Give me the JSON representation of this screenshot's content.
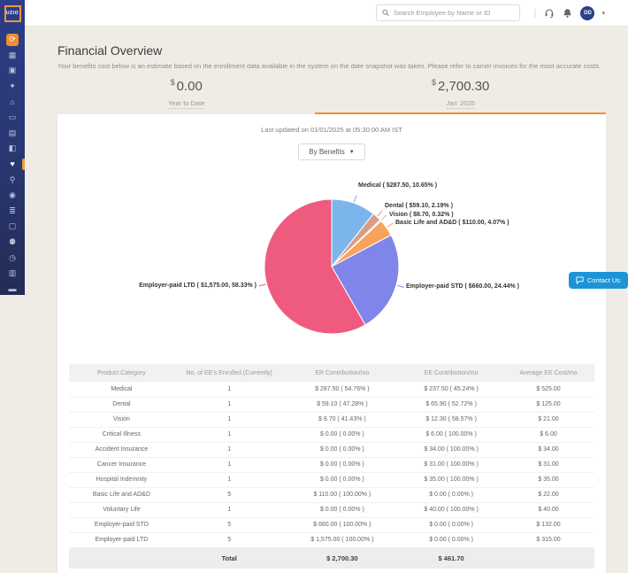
{
  "app": {
    "logo": "UZIO"
  },
  "topbar": {
    "search_placeholder": "Search Employee by Name or ID",
    "divider": "|",
    "avatar_initials": "DD"
  },
  "sidebar": {
    "items": [
      {
        "name": "home-sync",
        "glyph": "⟳",
        "style": "orange"
      },
      {
        "name": "dashboard",
        "glyph": "▦"
      },
      {
        "name": "employees",
        "glyph": "▣"
      },
      {
        "name": "ai-sparkle",
        "glyph": "✦"
      },
      {
        "name": "company",
        "glyph": "⌂"
      },
      {
        "name": "id-card",
        "glyph": "▭"
      },
      {
        "name": "documents",
        "glyph": "▤"
      },
      {
        "name": "payroll-case",
        "glyph": "◧"
      },
      {
        "name": "benefits",
        "glyph": "♥",
        "style": "active"
      },
      {
        "name": "people-search",
        "glyph": "⚲"
      },
      {
        "name": "user-shield",
        "glyph": "◉"
      },
      {
        "name": "tasks",
        "glyph": "≣"
      },
      {
        "name": "reports",
        "glyph": "▢"
      },
      {
        "name": "workstation",
        "glyph": "⚉"
      },
      {
        "name": "time-clock",
        "glyph": "◷"
      },
      {
        "name": "analytics",
        "glyph": "▥"
      },
      {
        "name": "travel-case",
        "glyph": "▬"
      }
    ]
  },
  "header": {
    "title": "Financial Overview",
    "subtitle": "Your benefits cost below is an estimate based on the enrollment data available in the system on the date snapshot was taken. Please refer to carrier invoices for the most accurate costs.",
    "tabs": [
      {
        "currency": "$",
        "amount": "0.00",
        "label": "Year to Date",
        "active": false
      },
      {
        "currency": "$",
        "amount": "2,700.30",
        "label": "Jan' 2025",
        "active": true
      }
    ]
  },
  "panel": {
    "last_updated": "Last updated on 01/01/2025 at 05:30:00 AM IST",
    "filter_label": "By Benefits",
    "contact_us": "Contact Us"
  },
  "chart_data": {
    "type": "pie",
    "title": "Benefits cost by product (Jan' 2025)",
    "total": "$ 2,700.30",
    "legend_position": "outside-callouts",
    "slices": [
      {
        "label": "Medical",
        "value": 287.5,
        "pct": 10.65,
        "color": "#7cb5ec",
        "display": "Medical ( $287.50, 10.65% )"
      },
      {
        "label": "Dental",
        "value": 59.1,
        "pct": 2.19,
        "color": "#da9c87",
        "display": "Dental ( $59.10, 2.19% )"
      },
      {
        "label": "Vision",
        "value": 8.7,
        "pct": 0.32,
        "color": "#a3d69c",
        "display": "Vision ( $8.70, 0.32% )"
      },
      {
        "label": "Basic Life and AD&D",
        "value": 110.0,
        "pct": 4.07,
        "color": "#f7a35c",
        "display": "Basic Life and AD&D ( $110.00, 4.07% )"
      },
      {
        "label": "Employer-paid STD",
        "value": 660.0,
        "pct": 24.44,
        "color": "#8085e9",
        "display": "Employer-paid STD ( $660.00, 24.44% )"
      },
      {
        "label": "Employer-paid LTD",
        "value": 1575.0,
        "pct": 58.33,
        "color": "#ef5b7e",
        "display": "Employer-paid LTD ( $1,575.00, 58.33% )"
      }
    ]
  },
  "table": {
    "headers": [
      "Product Category",
      "No. of EE's Enrolled (Currently)",
      "ER Contribution/mo",
      "EE Contribution/mo",
      "Average EE Cost/mo"
    ],
    "rows": [
      [
        "Medical",
        "1",
        "$ 287.50 ( 54.76% )",
        "$ 237.50 ( 45.24% )",
        "$ 525.00"
      ],
      [
        "Dental",
        "1",
        "$ 59.10 ( 47.28% )",
        "$ 65.90 ( 52.72% )",
        "$ 125.00"
      ],
      [
        "Vision",
        "1",
        "$ 8.70 ( 41.43% )",
        "$ 12.30 ( 58.57% )",
        "$ 21.00"
      ],
      [
        "Critical Illness",
        "1",
        "$ 0.00 ( 0.00% )",
        "$ 6.00 ( 100.00% )",
        "$ 6.00"
      ],
      [
        "Accident Insurance",
        "1",
        "$ 0.00 ( 0.00% )",
        "$ 34.00 ( 100.00% )",
        "$ 34.00"
      ],
      [
        "Cancer Insurance",
        "1",
        "$ 0.00 ( 0.00% )",
        "$ 31.00 ( 100.00% )",
        "$ 31.00"
      ],
      [
        "Hospital Indemnity",
        "1",
        "$ 0.00 ( 0.00% )",
        "$ 35.00 ( 100.00% )",
        "$ 35.00"
      ],
      [
        "Basic Life and AD&D",
        "5",
        "$ 110.00 ( 100.00% )",
        "$ 0.00 ( 0.00% )",
        "$ 22.00"
      ],
      [
        "Voluntary Life",
        "1",
        "$ 0.00 ( 0.00% )",
        "$ 40.00 ( 100.00% )",
        "$ 40.00"
      ],
      [
        "Employer-paid STD",
        "5",
        "$ 660.00 ( 100.00% )",
        "$ 0.00 ( 0.00% )",
        "$ 132.00"
      ],
      [
        "Employer-paid LTD",
        "5",
        "$ 1,575.00 ( 100.00% )",
        "$ 0.00 ( 0.00% )",
        "$ 315.00"
      ]
    ],
    "total": {
      "label": "Total",
      "er": "$ 2,700.30",
      "ee": "$ 461.70"
    }
  },
  "colors": {
    "accent_orange": "#f0922e",
    "sidebar_navy": "#2b3a7c",
    "contact_blue": "#1b95d8",
    "page_bg": "#efece6"
  }
}
